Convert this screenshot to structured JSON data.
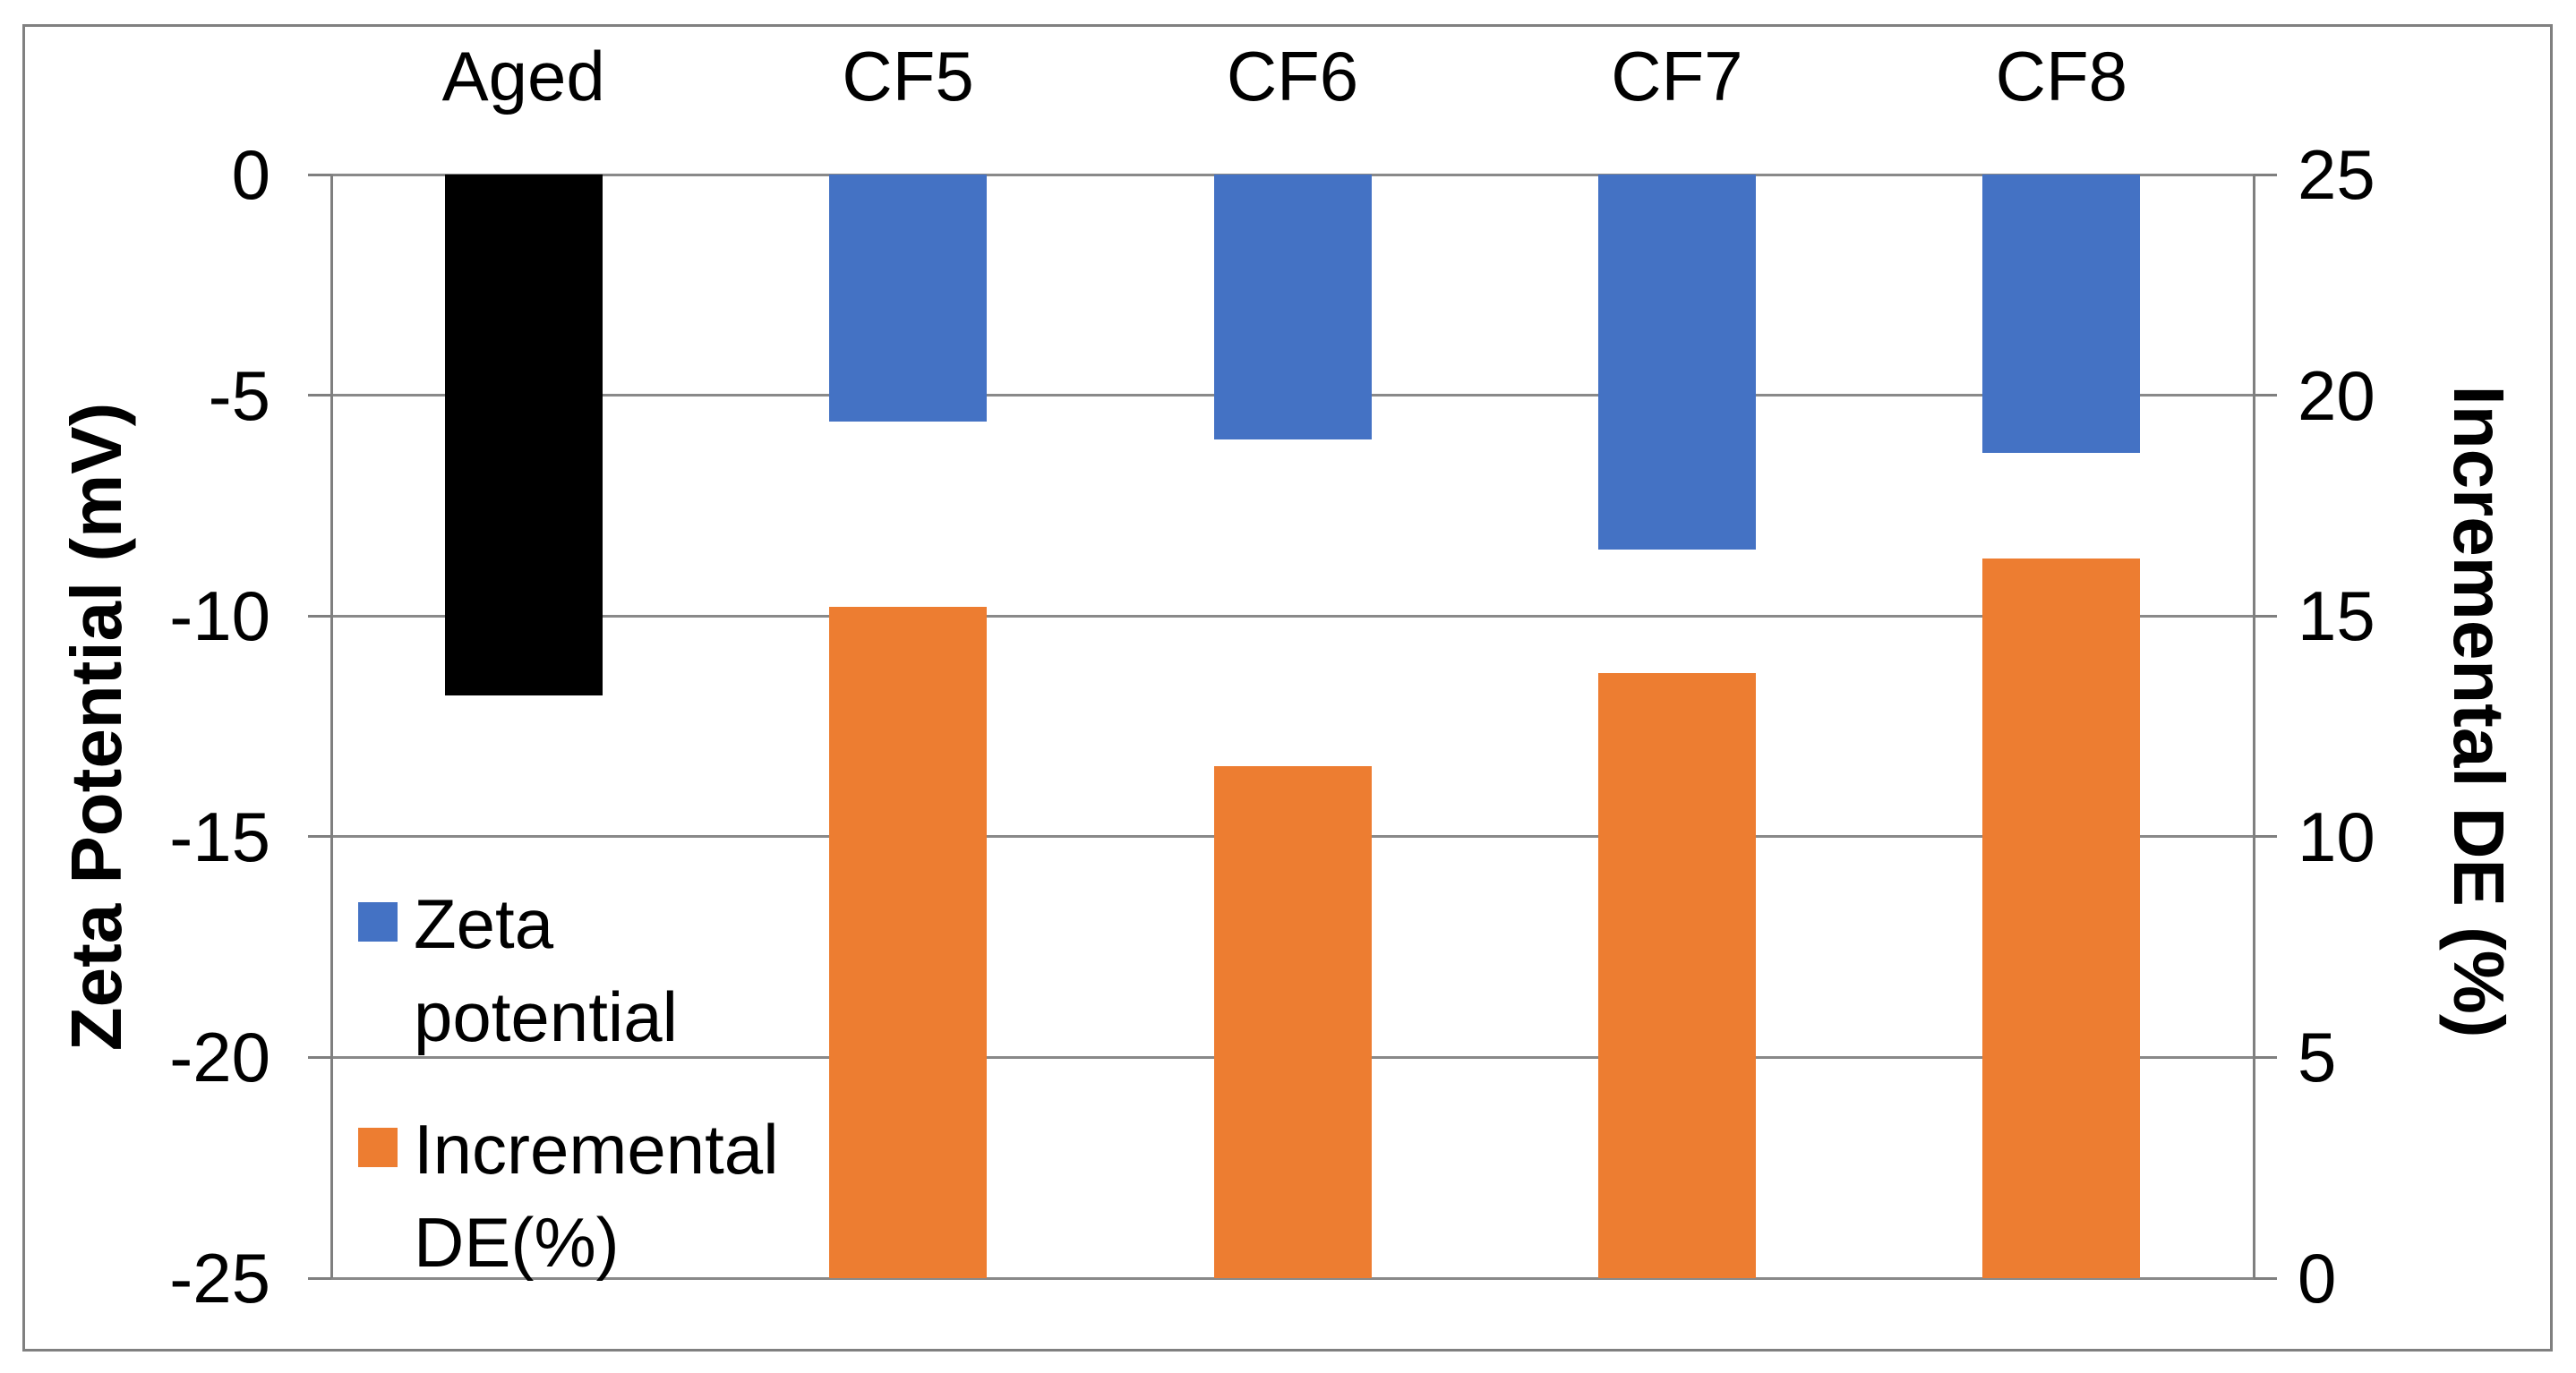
{
  "colors": {
    "blue": "#4472C4",
    "orange": "#ED7D31",
    "black": "#000000",
    "gridline": "#898989",
    "axis_line": "#7f7f7f",
    "border": "#808080",
    "text": "#000000",
    "background": "#ffffff"
  },
  "chart_data": {
    "type": "bar",
    "title": "",
    "categories": [
      "Aged",
      "CF5",
      "CF6",
      "CF7",
      "CF8"
    ],
    "series": [
      {
        "name": "Zeta potential",
        "axis": "left",
        "unit": "mV",
        "values": [
          -11.8,
          -5.6,
          -6.0,
          -8.5,
          -6.3
        ],
        "color": "#4472C4",
        "point_colors": [
          "#000000",
          "#4472C4",
          "#4472C4",
          "#4472C4",
          "#4472C4"
        ]
      },
      {
        "name": "Incremental DE(%)",
        "axis": "right",
        "unit": "%",
        "values": [
          null,
          15.2,
          11.6,
          13.7,
          16.3
        ],
        "color": "#ED7D31",
        "point_colors": [
          null,
          "#ED7D31",
          "#ED7D31",
          "#ED7D31",
          "#ED7D31"
        ]
      }
    ],
    "left_axis": {
      "title": "Zeta Potential (mV)",
      "range": [
        0,
        -25
      ],
      "tick_values": [
        0,
        -5,
        -10,
        -15,
        -20,
        -25
      ],
      "tick_labels": [
        "0",
        "-5",
        "-10",
        "-15",
        "-20",
        "-25"
      ]
    },
    "right_axis": {
      "title": "Incremental DE (%)",
      "range": [
        0,
        25
      ],
      "tick_values": [
        25,
        20,
        15,
        10,
        5,
        0
      ],
      "tick_labels": [
        "25",
        "20",
        "15",
        "10",
        "5",
        "0"
      ]
    },
    "legend": {
      "position": "inside-left",
      "items": [
        {
          "label": "Zeta potential",
          "color": "#4472C4"
        },
        {
          "label": "Incremental DE(%)",
          "color": "#ED7D31"
        }
      ]
    },
    "grid": true,
    "category_labels_position": "top"
  }
}
